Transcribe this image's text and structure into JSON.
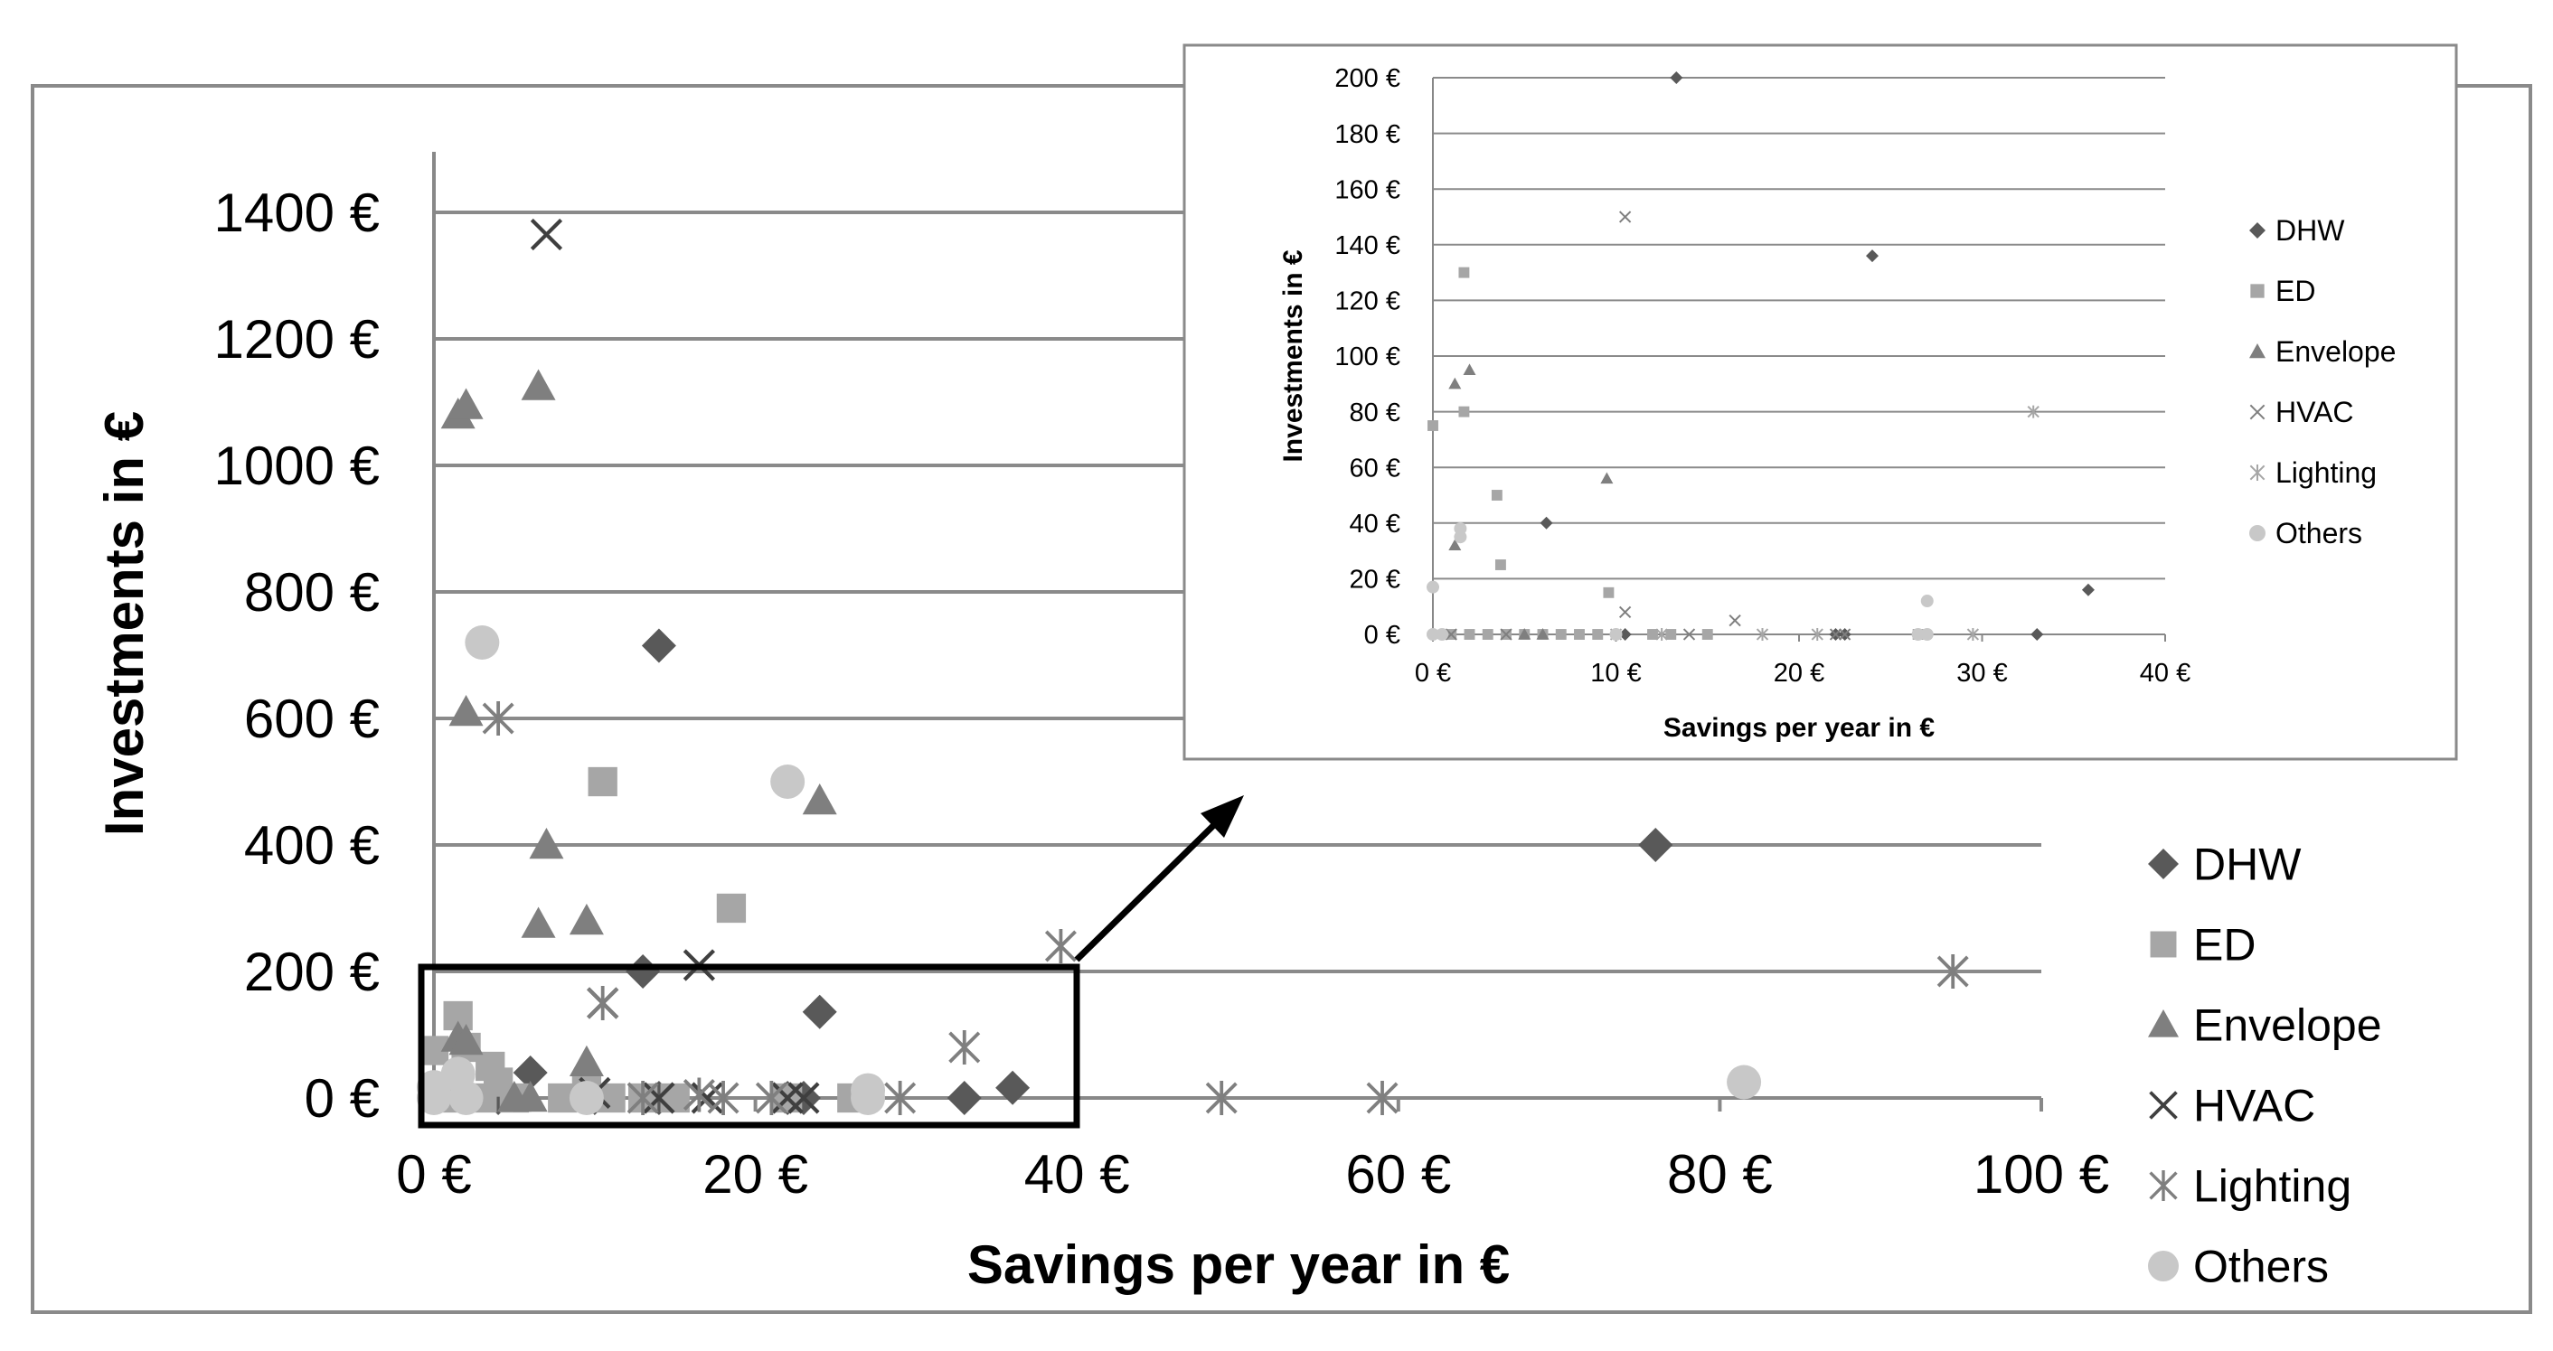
{
  "chart_data": [
    {
      "type": "scatter",
      "xlabel": "Savings per year in €",
      "ylabel": "Investments in €",
      "xlim": [
        0,
        100
      ],
      "ylim": [
        0,
        1400
      ],
      "xticks": [
        0,
        20,
        40,
        60,
        80,
        100
      ],
      "yticks": [
        0,
        200,
        400,
        600,
        800,
        1000,
        1200,
        1400
      ],
      "xtick_labels": [
        "0 €",
        "20 €",
        "40 €",
        "60 €",
        "80 €",
        "100 €"
      ],
      "ytick_labels": [
        "0 €",
        "200 €",
        "400 €",
        "600 €",
        "800 €",
        "1000 €",
        "1200 €",
        "1400 €"
      ],
      "grid": true,
      "legend_position": "right",
      "series": [
        {
          "name": "DHW",
          "marker": "diamond",
          "color": "#595959",
          "points": [
            [
              14,
              715
            ],
            [
              13,
              200
            ],
            [
              6,
              40
            ],
            [
              24,
              136
            ],
            [
              33,
              0
            ],
            [
              36,
              16
            ],
            [
              76,
              400
            ],
            [
              22,
              0
            ],
            [
              23,
              0
            ],
            [
              14,
              0
            ],
            [
              10,
              0
            ],
            [
              4,
              0
            ]
          ]
        },
        {
          "name": "ED",
          "marker": "square",
          "color": "#a6a6a6",
          "points": [
            [
              10.5,
              500
            ],
            [
              18.5,
              300
            ],
            [
              1.5,
              130
            ],
            [
              0,
              75
            ],
            [
              2,
              80
            ],
            [
              3.5,
              50
            ],
            [
              9.5,
              15
            ],
            [
              4,
              25
            ],
            [
              1,
              0
            ],
            [
              3,
              0
            ],
            [
              5,
              0
            ],
            [
              8,
              0
            ],
            [
              11,
              0
            ],
            [
              13,
              0
            ],
            [
              15,
              0
            ],
            [
              22,
              0
            ],
            [
              26,
              0
            ]
          ]
        },
        {
          "name": "Envelope",
          "marker": "triangle",
          "color": "#7f7f7f",
          "points": [
            [
              1.5,
              1080
            ],
            [
              2,
              1095
            ],
            [
              6.5,
              1125
            ],
            [
              2,
              610
            ],
            [
              7,
              400
            ],
            [
              6.5,
              275
            ],
            [
              9.5,
              280
            ],
            [
              24,
              470
            ],
            [
              1.5,
              95
            ],
            [
              2,
              90
            ],
            [
              9.5,
              56
            ],
            [
              1,
              32
            ],
            [
              5,
              0
            ],
            [
              6,
              0
            ]
          ]
        },
        {
          "name": "HVAC",
          "marker": "x",
          "color": "#3f3f3f",
          "points": [
            [
              7,
              1365
            ],
            [
              10.5,
              150
            ],
            [
              16.5,
              210
            ],
            [
              1,
              0
            ],
            [
              14,
              0
            ],
            [
              17,
              0
            ],
            [
              22,
              0
            ],
            [
              23,
              0
            ],
            [
              10,
              8
            ]
          ]
        },
        {
          "name": "Lighting",
          "marker": "asterisk",
          "color": "#7f7f7f",
          "points": [
            [
              4,
              600
            ],
            [
              39,
              240
            ],
            [
              94.5,
              200
            ],
            [
              33,
              80
            ],
            [
              49,
              0
            ],
            [
              59,
              0
            ],
            [
              29,
              0
            ],
            [
              18,
              0
            ],
            [
              21,
              0
            ],
            [
              13,
              0
            ],
            [
              10.5,
              150
            ],
            [
              16.5,
              5
            ]
          ]
        },
        {
          "name": "Others",
          "marker": "circle",
          "color": "#c8c8c8",
          "points": [
            [
              3,
              720
            ],
            [
              22,
              500
            ],
            [
              81.5,
              25
            ],
            [
              1.5,
              37
            ],
            [
              0,
              17
            ],
            [
              1.5,
              38
            ],
            [
              27,
              0
            ],
            [
              9.5,
              0
            ],
            [
              0,
              0
            ],
            [
              27,
              12
            ],
            [
              2,
              0
            ]
          ]
        }
      ]
    },
    {
      "type": "scatter",
      "role": "inset (zoom of 0–40 €, 0–200 € region)",
      "xlabel": "Savings per year in €",
      "ylabel": "Investments in €",
      "xlim": [
        0,
        40
      ],
      "ylim": [
        0,
        200
      ],
      "xticks": [
        0,
        10,
        20,
        30,
        40
      ],
      "yticks": [
        0,
        20,
        40,
        60,
        80,
        100,
        120,
        140,
        160,
        180,
        200
      ],
      "xtick_labels": [
        "0 €",
        "10 €",
        "20 €",
        "30 €",
        "40 €"
      ],
      "ytick_labels": [
        "0 €",
        "20 €",
        "40 €",
        "60 €",
        "80 €",
        "100 €",
        "120 €",
        "140 €",
        "160 €",
        "180 €",
        "200 €"
      ],
      "grid": true,
      "legend_position": "right",
      "series": [
        {
          "name": "DHW",
          "marker": "diamond",
          "color": "#595959",
          "points": [
            [
              13.3,
              200
            ],
            [
              24,
              136
            ],
            [
              6.2,
              40
            ],
            [
              35.8,
              16
            ],
            [
              10.5,
              0
            ],
            [
              22,
              0
            ],
            [
              22.5,
              0
            ],
            [
              33,
              0
            ]
          ]
        },
        {
          "name": "ED",
          "marker": "square",
          "color": "#a6a6a6",
          "points": [
            [
              0,
              75
            ],
            [
              1.7,
              130
            ],
            [
              1.7,
              80
            ],
            [
              3.5,
              50
            ],
            [
              3.7,
              25
            ],
            [
              9.6,
              15
            ],
            [
              1,
              0
            ],
            [
              2,
              0
            ],
            [
              3,
              0
            ],
            [
              4,
              0
            ],
            [
              5,
              0
            ],
            [
              6,
              0
            ],
            [
              7,
              0
            ],
            [
              8,
              0
            ],
            [
              9,
              0
            ],
            [
              12,
              0
            ],
            [
              13,
              0
            ],
            [
              15,
              0
            ],
            [
              26.5,
              0
            ]
          ]
        },
        {
          "name": "Envelope",
          "marker": "triangle",
          "color": "#7f7f7f",
          "points": [
            [
              1.2,
              90
            ],
            [
              2,
              95
            ],
            [
              9.5,
              56
            ],
            [
              1.2,
              32
            ],
            [
              5,
              0
            ],
            [
              6,
              0
            ]
          ]
        },
        {
          "name": "HVAC",
          "marker": "x",
          "color": "#7f7f7f",
          "points": [
            [
              10.5,
              150
            ],
            [
              10.5,
              8
            ],
            [
              16.5,
              5
            ],
            [
              1,
              0
            ],
            [
              4,
              0
            ],
            [
              14,
              0
            ],
            [
              22,
              0
            ],
            [
              22.5,
              0
            ]
          ]
        },
        {
          "name": "Lighting",
          "marker": "asterisk",
          "color": "#a6a6a6",
          "points": [
            [
              32.8,
              80
            ],
            [
              18,
              0
            ],
            [
              21,
              0
            ],
            [
              29.5,
              0
            ],
            [
              12.5,
              0
            ],
            [
              10,
              0
            ]
          ]
        },
        {
          "name": "Others",
          "marker": "circle",
          "color": "#c8c8c8",
          "points": [
            [
              0,
              17
            ],
            [
              1.5,
              38
            ],
            [
              1.5,
              35
            ],
            [
              27,
              12
            ],
            [
              0,
              0
            ],
            [
              0.5,
              0
            ],
            [
              10,
              0
            ],
            [
              26.5,
              0
            ],
            [
              27,
              0
            ]
          ]
        }
      ]
    }
  ]
}
